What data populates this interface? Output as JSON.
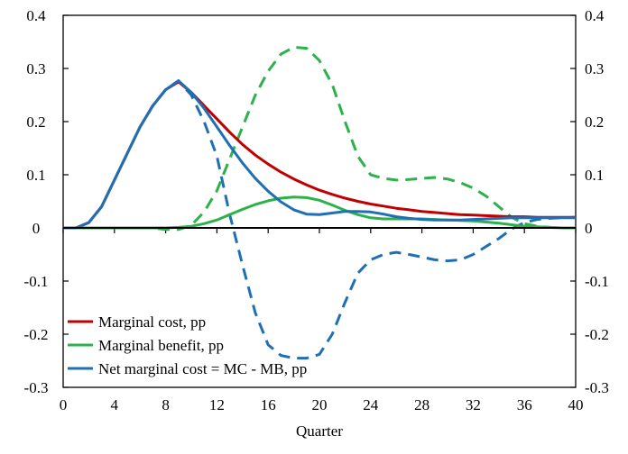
{
  "chart_data": {
    "type": "line",
    "xlabel": "Quarter",
    "ylabel": "",
    "xlim": [
      0,
      40
    ],
    "ylim": [
      -0.3,
      0.4
    ],
    "x_ticks": [
      "0",
      "4",
      "8",
      "12",
      "16",
      "20",
      "24",
      "28",
      "32",
      "36",
      "40"
    ],
    "y_ticks_left": [
      "0.4",
      "0.3",
      "0.2",
      "0.1",
      "0",
      "-0.1",
      "-0.2",
      "-0.3"
    ],
    "y_ticks_right": [
      "0.4",
      "0.3",
      "0.2",
      "0.1",
      "0",
      "-0.1",
      "-0.2",
      "-0.3"
    ],
    "legend_position": "bottom-left",
    "series": [
      {
        "name": "Marginal cost, pp",
        "color": "#C00000",
        "dash": "solid",
        "x": [
          0,
          1,
          2,
          3,
          4,
          5,
          6,
          7,
          8,
          9,
          10,
          11,
          12,
          13,
          14,
          15,
          16,
          17,
          18,
          19,
          20,
          21,
          22,
          23,
          24,
          25,
          26,
          27,
          28,
          29,
          30,
          31,
          32,
          33,
          34,
          35,
          36,
          37,
          38,
          39,
          40
        ],
        "y": [
          0,
          0,
          0.01,
          0.04,
          0.09,
          0.14,
          0.19,
          0.23,
          0.26,
          0.275,
          0.255,
          0.23,
          0.205,
          0.18,
          0.157,
          0.137,
          0.12,
          0.105,
          0.092,
          0.081,
          0.071,
          0.063,
          0.056,
          0.05,
          0.045,
          0.041,
          0.037,
          0.034,
          0.031,
          0.029,
          0.027,
          0.025,
          0.024,
          0.023,
          0.022,
          0.021,
          0.021,
          0.02,
          0.02,
          0.02,
          0.02
        ]
      },
      {
        "name": "Marginal benefit, pp",
        "color": "#2DB14B",
        "dash": "solid",
        "x": [
          0,
          1,
          2,
          3,
          4,
          5,
          6,
          7,
          8,
          9,
          10,
          11,
          12,
          13,
          14,
          15,
          16,
          17,
          18,
          19,
          20,
          21,
          22,
          23,
          24,
          25,
          26,
          27,
          28,
          29,
          30,
          31,
          32,
          33,
          34,
          35,
          36,
          37,
          38,
          39,
          40
        ],
        "y": [
          0,
          0,
          0,
          0,
          0,
          0,
          0,
          0,
          0,
          0.001,
          0.003,
          0.008,
          0.015,
          0.025,
          0.035,
          0.044,
          0.051,
          0.056,
          0.058,
          0.057,
          0.052,
          0.043,
          0.033,
          0.025,
          0.019,
          0.017,
          0.017,
          0.017,
          0.017,
          0.016,
          0.015,
          0.014,
          0.013,
          0.011,
          0.009,
          0.006,
          0.003,
          0.002,
          0.001,
          0,
          0
        ]
      },
      {
        "name": "Net marginal cost = MC - MB, pp",
        "color": "#1F6FB5",
        "dash": "solid",
        "x": [
          0,
          1,
          2,
          3,
          4,
          5,
          6,
          7,
          8,
          9,
          10,
          11,
          12,
          13,
          14,
          15,
          16,
          17,
          18,
          19,
          20,
          21,
          22,
          23,
          24,
          25,
          26,
          27,
          28,
          29,
          30,
          31,
          32,
          33,
          34,
          35,
          36,
          37,
          38,
          39,
          40
        ],
        "y": [
          0,
          0,
          0.01,
          0.04,
          0.09,
          0.14,
          0.19,
          0.23,
          0.26,
          0.277,
          0.255,
          0.225,
          0.19,
          0.155,
          0.122,
          0.093,
          0.069,
          0.049,
          0.034,
          0.026,
          0.025,
          0.028,
          0.031,
          0.031,
          0.03,
          0.026,
          0.021,
          0.018,
          0.016,
          0.015,
          0.015,
          0.015,
          0.016,
          0.017,
          0.018,
          0.019,
          0.019,
          0.019,
          0.019,
          0.019,
          0.019
        ]
      },
      {
        "name": "",
        "color": "#2DB14B",
        "dash": "dashed",
        "x": [
          0,
          1,
          2,
          3,
          4,
          5,
          6,
          7,
          8,
          9,
          10,
          11,
          12,
          13,
          14,
          15,
          16,
          17,
          18,
          19,
          20,
          21,
          22,
          23,
          24,
          25,
          26,
          27,
          28,
          29,
          30,
          31,
          32,
          33,
          34,
          35,
          36,
          37,
          38,
          39,
          40
        ],
        "y": [
          0,
          0,
          0,
          0,
          0,
          0,
          0,
          0,
          -0.003,
          -0.003,
          0.005,
          0.03,
          0.07,
          0.13,
          0.19,
          0.25,
          0.295,
          0.327,
          0.34,
          0.338,
          0.315,
          0.27,
          0.2,
          0.135,
          0.1,
          0.093,
          0.09,
          0.091,
          0.093,
          0.095,
          0.092,
          0.085,
          0.075,
          0.06,
          0.04,
          0.02,
          0.008,
          0.003,
          0.001,
          0,
          0
        ]
      },
      {
        "name": "",
        "color": "#1F6FB5",
        "dash": "dashed",
        "x": [
          0,
          1,
          2,
          3,
          4,
          5,
          6,
          7,
          8,
          9,
          10,
          11,
          12,
          13,
          14,
          15,
          16,
          17,
          18,
          19,
          20,
          21,
          22,
          23,
          24,
          25,
          26,
          27,
          28,
          29,
          30,
          31,
          32,
          33,
          34,
          35,
          36,
          37,
          38,
          39,
          40
        ],
        "y": [
          0,
          0,
          0.01,
          0.04,
          0.09,
          0.14,
          0.19,
          0.23,
          0.26,
          0.277,
          0.25,
          0.2,
          0.135,
          0.025,
          -0.07,
          -0.16,
          -0.22,
          -0.24,
          -0.245,
          -0.245,
          -0.238,
          -0.2,
          -0.14,
          -0.085,
          -0.06,
          -0.05,
          -0.046,
          -0.05,
          -0.055,
          -0.06,
          -0.062,
          -0.06,
          -0.05,
          -0.035,
          -0.02,
          -0.002,
          0.01,
          0.016,
          0.018,
          0.019,
          0.02
        ]
      }
    ]
  }
}
